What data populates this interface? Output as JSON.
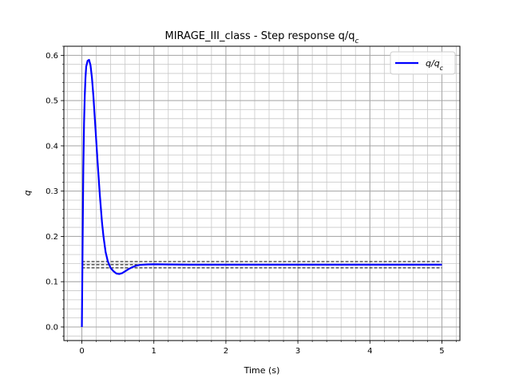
{
  "chart_data": {
    "type": "line",
    "title": "MIRAGE_III_class - Step response q/q",
    "title_sub": "c",
    "xlabel": "Time (s)",
    "ylabel": "q",
    "xlim": [
      -0.25,
      5.25
    ],
    "ylim": [
      -0.03,
      0.62
    ],
    "grid": true,
    "minor_grid": true,
    "legend": "top-right",
    "xticks": [
      0,
      1,
      2,
      3,
      4,
      5
    ],
    "xtick_labels": [
      "0",
      "1",
      "2",
      "3",
      "4",
      "5"
    ],
    "yticks": [
      0.0,
      0.1,
      0.2,
      0.3,
      0.4,
      0.5,
      0.6
    ],
    "ytick_labels": [
      "0.0",
      "0.1",
      "0.2",
      "0.3",
      "0.4",
      "0.5",
      "0.6"
    ],
    "series": [
      {
        "name": "q/q",
        "name_sub": "c",
        "color": "#0000ff",
        "x": [
          0.0,
          0.01,
          0.02,
          0.03,
          0.04,
          0.05,
          0.06,
          0.08,
          0.1,
          0.12,
          0.14,
          0.16,
          0.18,
          0.2,
          0.22,
          0.25,
          0.28,
          0.3,
          0.33,
          0.36,
          0.4,
          0.44,
          0.48,
          0.52,
          0.56,
          0.6,
          0.65,
          0.7,
          0.75,
          0.8,
          0.9,
          1.0,
          1.2,
          1.5,
          2.0,
          3.0,
          4.0,
          5.0
        ],
        "y": [
          0.0,
          0.18,
          0.35,
          0.45,
          0.51,
          0.55,
          0.575,
          0.588,
          0.59,
          0.578,
          0.55,
          0.51,
          0.46,
          0.41,
          0.36,
          0.29,
          0.23,
          0.2,
          0.165,
          0.145,
          0.13,
          0.123,
          0.118,
          0.117,
          0.119,
          0.123,
          0.128,
          0.132,
          0.135,
          0.137,
          0.138,
          0.1385,
          0.138,
          0.1375,
          0.1375,
          0.1375,
          0.1375,
          0.1375
        ]
      }
    ],
    "reference_lines": {
      "color": "#000000",
      "style": "dashed",
      "y": [
        0.1306,
        0.1375,
        0.1444
      ],
      "x_range": [
        0.0,
        5.0
      ]
    }
  }
}
